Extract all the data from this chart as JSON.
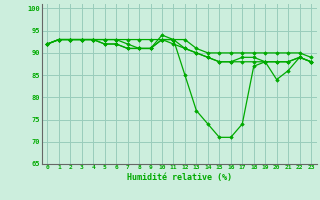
{
  "title": "",
  "xlabel": "Humidité relative (%)",
  "ylabel": "",
  "background_color": "#cceedd",
  "grid_color": "#99ccbb",
  "line_color": "#00aa00",
  "marker_color": "#00aa00",
  "xlim": [
    -0.5,
    23.5
  ],
  "ylim": [
    65,
    101
  ],
  "yticks": [
    65,
    70,
    75,
    80,
    85,
    90,
    95,
    100
  ],
  "xticks": [
    0,
    1,
    2,
    3,
    4,
    5,
    6,
    7,
    8,
    9,
    10,
    11,
    12,
    13,
    14,
    15,
    16,
    17,
    18,
    19,
    20,
    21,
    22,
    23
  ],
  "series": [
    [
      92,
      93,
      93,
      93,
      93,
      93,
      93,
      92,
      91,
      91,
      94,
      93,
      85,
      77,
      74,
      71,
      71,
      74,
      87,
      88,
      84,
      86,
      89,
      88
    ],
    [
      92,
      93,
      93,
      93,
      93,
      92,
      92,
      91,
      91,
      91,
      93,
      92,
      91,
      90,
      89,
      88,
      88,
      88,
      88,
      88,
      88,
      88,
      89,
      88
    ],
    [
      92,
      93,
      93,
      93,
      93,
      92,
      92,
      91,
      91,
      91,
      93,
      93,
      91,
      90,
      89,
      88,
      88,
      89,
      89,
      88,
      88,
      88,
      89,
      88
    ],
    [
      92,
      93,
      93,
      93,
      93,
      93,
      93,
      93,
      93,
      93,
      93,
      93,
      93,
      91,
      90,
      90,
      90,
      90,
      90,
      90,
      90,
      90,
      90,
      89
    ]
  ]
}
